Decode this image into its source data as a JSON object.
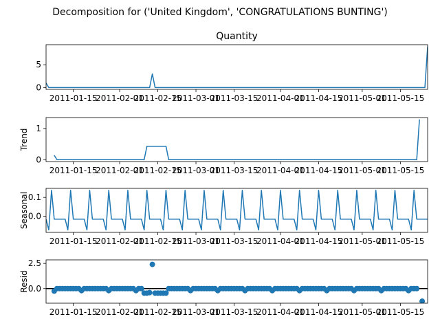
{
  "figure": {
    "suptitle": "Decomposition for ('United Kingdom', 'CONGRATULATIONS BUNTING')"
  },
  "colors": {
    "series": "#1f77b4",
    "axis": "#000000",
    "background": "#ffffff"
  },
  "chart_data": [
    {
      "type": "line",
      "title": "Quantity",
      "ylabel": "",
      "x_start": "2011-01-05",
      "x_end": "2011-05-25",
      "xticks": [
        "2011-01-15",
        "2011-02-01",
        "2011-02-15",
        "2011-03-01",
        "2011-03-15",
        "2011-04-01",
        "2011-04-15",
        "2011-05-01",
        "2011-05-15"
      ],
      "ylim": [
        -0.4,
        9.4
      ],
      "yticks": [
        0,
        5
      ],
      "points": [
        [
          "2011-01-05",
          1
        ],
        [
          "2011-01-06",
          0
        ],
        [
          "2011-02-12",
          0
        ],
        [
          "2011-02-13",
          3
        ],
        [
          "2011-02-14",
          0
        ],
        [
          "2011-05-24",
          0
        ],
        [
          "2011-05-25",
          9
        ]
      ]
    },
    {
      "type": "line",
      "title": "",
      "ylabel": "Trend",
      "x_start": "2011-01-05",
      "x_end": "2011-05-25",
      "xticks": [
        "2011-01-15",
        "2011-02-01",
        "2011-02-15",
        "2011-03-01",
        "2011-03-15",
        "2011-04-01",
        "2011-04-15",
        "2011-05-01",
        "2011-05-15"
      ],
      "ylim": [
        -0.06,
        1.35
      ],
      "yticks": [
        0,
        1
      ],
      "points": [
        [
          "2011-01-08",
          0.14
        ],
        [
          "2011-01-09",
          0
        ],
        [
          "2011-02-10",
          0
        ],
        [
          "2011-02-11",
          0.43
        ],
        [
          "2011-02-18",
          0.43
        ],
        [
          "2011-02-19",
          0
        ],
        [
          "2011-05-21",
          0
        ],
        [
          "2011-05-22",
          1.29
        ]
      ]
    },
    {
      "type": "line",
      "title": "",
      "ylabel": "Seasonal",
      "x_start": "2011-01-05",
      "x_end": "2011-05-25",
      "xticks": [
        "2011-01-15",
        "2011-02-01",
        "2011-02-15",
        "2011-03-01",
        "2011-03-15",
        "2011-04-01",
        "2011-04-15",
        "2011-05-01",
        "2011-05-15"
      ],
      "ylim": [
        -0.085,
        0.148
      ],
      "yticks": [
        0.1,
        0.0
      ],
      "ytick_labels": [
        "0.1",
        "0.0"
      ],
      "period_days": 7,
      "first_point": "2011-01-05",
      "pattern": [
        -0.015,
        -0.072,
        0.138,
        -0.015,
        -0.015,
        -0.015,
        -0.015
      ]
    },
    {
      "type": "scatter",
      "title": "",
      "ylabel": "Resid",
      "x_start": "2011-01-05",
      "x_end": "2011-05-25",
      "xticks": [
        "2011-01-15",
        "2011-02-01",
        "2011-02-15",
        "2011-03-01",
        "2011-03-15",
        "2011-04-01",
        "2011-04-15",
        "2011-05-01",
        "2011-05-15"
      ],
      "ylim": [
        -1.45,
        2.85
      ],
      "yticks": [
        2.5,
        0.0
      ],
      "ytick_labels": [
        "2.5",
        "0.0"
      ],
      "zero_line": true,
      "x_first": "2011-01-08",
      "x_last": "2011-05-21",
      "baseline": 0,
      "dip_every_days": 10,
      "dip_value": -0.2,
      "overrides": [
        [
          "2011-01-08",
          -0.25
        ],
        [
          "2011-02-10",
          -0.45
        ],
        [
          "2011-02-11",
          -0.45
        ],
        [
          "2011-02-12",
          -0.4
        ],
        [
          "2011-02-13",
          2.4
        ],
        [
          "2011-02-14",
          -0.45
        ],
        [
          "2011-02-15",
          -0.45
        ],
        [
          "2011-02-16",
          -0.45
        ],
        [
          "2011-02-17",
          -0.45
        ],
        [
          "2011-02-18",
          -0.45
        ]
      ],
      "extra_points": [
        [
          "2011-05-23",
          -1.25
        ]
      ]
    }
  ]
}
